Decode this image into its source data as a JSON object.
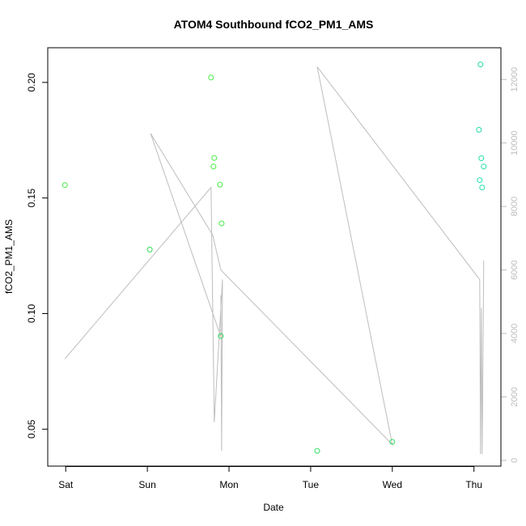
{
  "chart_data": {
    "type": "scatter",
    "title": "ATOM4 Southbound fCO2_PM1_AMS",
    "xlabel": "Date",
    "ylabel": "fCO2_PM1_AMS",
    "x_ticks": [
      {
        "x": 0,
        "label": "Sat"
      },
      {
        "x": 1,
        "label": "Sun"
      },
      {
        "x": 2,
        "label": "Mon"
      },
      {
        "x": 3,
        "label": "Tue"
      },
      {
        "x": 4,
        "label": "Wed"
      },
      {
        "x": 5,
        "label": "Thu"
      }
    ],
    "xlim": [
      -0.22,
      5.33
    ],
    "ylim": [
      0.034,
      0.215
    ],
    "y_ticks": [
      0.05,
      0.1,
      0.15,
      0.2
    ],
    "y_tick_labels": [
      "0.05",
      "0.10",
      "0.15",
      "0.20"
    ],
    "y2lim": [
      -180,
      13000
    ],
    "y2_ticks": [
      0,
      2000,
      4000,
      6000,
      8000,
      10000,
      12000
    ],
    "y2_tick_labels": [
      "0",
      "2000",
      "4000",
      "6000",
      "8000",
      "10000",
      "12000"
    ],
    "colors": {
      "points_green": "#33dd33",
      "points_teal": "#22ddaa",
      "line": "#bdbdbd",
      "axis": "#000000",
      "right_axis": "#bdbdbd"
    },
    "points": [
      {
        "x": -0.01,
        "y": 0.1556,
        "color": "#44ee44"
      },
      {
        "x": 1.03,
        "y": 0.1277,
        "color": "#33dd55"
      },
      {
        "x": 1.78,
        "y": 0.2021,
        "color": "#44ee44"
      },
      {
        "x": 1.81,
        "y": 0.1636,
        "color": "#44ee44"
      },
      {
        "x": 1.82,
        "y": 0.1673,
        "color": "#44ee44"
      },
      {
        "x": 1.89,
        "y": 0.1558,
        "color": "#44ee44"
      },
      {
        "x": 1.91,
        "y": 0.139,
        "color": "#44ee44"
      },
      {
        "x": 1.9,
        "y": 0.0903,
        "color": "#33dd55"
      },
      {
        "x": 3.08,
        "y": 0.0406,
        "color": "#33dd66"
      },
      {
        "x": 4.0,
        "y": 0.0445,
        "color": "#33dd66"
      },
      {
        "x": 5.06,
        "y": 0.1795,
        "color": "#22ddaa"
      },
      {
        "x": 5.08,
        "y": 0.2078,
        "color": "#22ddaa"
      },
      {
        "x": 5.09,
        "y": 0.1672,
        "color": "#22ddaa"
      },
      {
        "x": 5.12,
        "y": 0.1636,
        "color": "#22ddaa"
      },
      {
        "x": 5.07,
        "y": 0.1577,
        "color": "#22ddaa"
      },
      {
        "x": 5.1,
        "y": 0.1545,
        "color": "#22ddaa"
      }
    ],
    "line_series": {
      "axis": "right",
      "points": [
        [
          -0.01,
          3200
        ],
        [
          1.78,
          8600
        ],
        [
          1.82,
          1200
        ],
        [
          1.92,
          5700
        ],
        [
          1.91,
          300
        ],
        [
          1.9,
          5200
        ],
        [
          1.9,
          3900
        ],
        [
          1.04,
          10300
        ],
        [
          1.8,
          7100
        ],
        [
          1.9,
          6000
        ],
        [
          4.0,
          500
        ],
        [
          3.08,
          12400
        ],
        [
          5.07,
          5700
        ],
        [
          5.08,
          200
        ],
        [
          5.09,
          4800
        ],
        [
          5.1,
          200
        ],
        [
          5.12,
          6300
        ]
      ]
    }
  }
}
